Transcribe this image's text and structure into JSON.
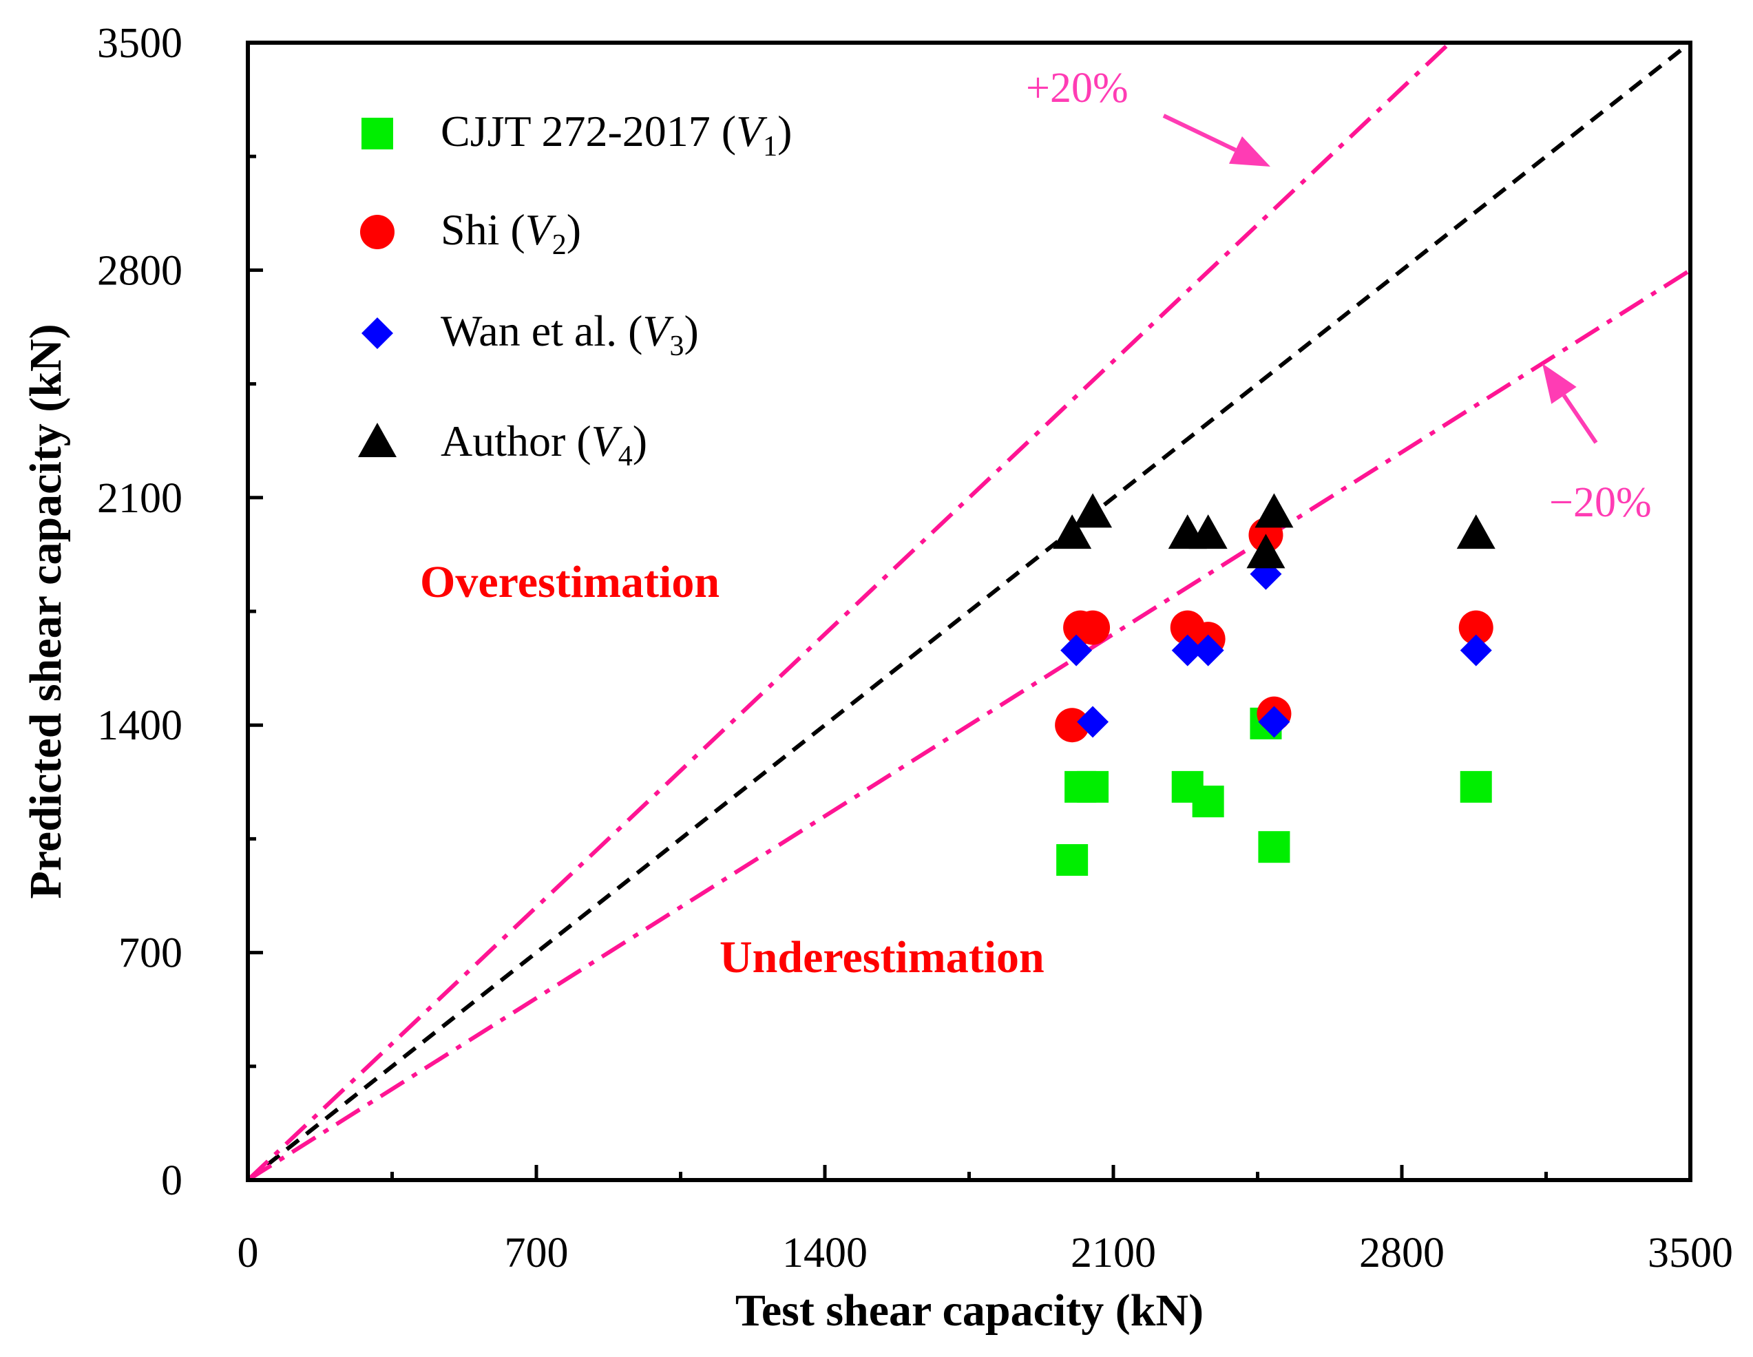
{
  "chart_data": {
    "type": "scatter",
    "xlabel": "Test shear capacity (kN)",
    "ylabel": "Predicted shear capacity (kN)",
    "xlim": [
      0,
      3500
    ],
    "ylim": [
      0,
      3500
    ],
    "x_ticks": [
      "0",
      "700",
      "1400",
      "2100",
      "2800",
      "3500"
    ],
    "y_ticks": [
      "0",
      "700",
      "1400",
      "2100",
      "2800",
      "3500"
    ],
    "tick_values": [
      0,
      700,
      1400,
      2100,
      2800,
      3500
    ],
    "minor_tick_values": [
      350,
      1050,
      1750,
      2450,
      3150
    ],
    "legend_position": "top-left",
    "series": [
      {
        "name": "CJJT 272-2017 (V1)",
        "label_main": "CJJT 272-2017 (",
        "label_var": "V",
        "label_sub": "1",
        "label_end": ")",
        "marker": "square",
        "color": "#00ee00",
        "points": [
          [
            2000,
            985
          ],
          [
            2020,
            1210
          ],
          [
            2050,
            1210
          ],
          [
            2280,
            1210
          ],
          [
            2330,
            1165
          ],
          [
            2470,
            1405
          ],
          [
            2490,
            1025
          ],
          [
            2980,
            1210
          ]
        ]
      },
      {
        "name": "Shi (V2)",
        "label_main": "Shi (",
        "label_var": "V",
        "label_sub": "2",
        "label_end": ")",
        "marker": "circle",
        "color": "#ff0000",
        "points": [
          [
            2000,
            1400
          ],
          [
            2020,
            1700
          ],
          [
            2050,
            1700
          ],
          [
            2280,
            1700
          ],
          [
            2330,
            1665
          ],
          [
            2470,
            1985
          ],
          [
            2490,
            1435
          ],
          [
            2980,
            1700
          ]
        ]
      },
      {
        "name": "Wan et al. (V3)",
        "label_main": "Wan et al. (",
        "label_var": "V",
        "label_sub": "3",
        "label_end": ")",
        "marker": "diamond",
        "color": "#0000ff",
        "points": [
          [
            2010,
            1630
          ],
          [
            2050,
            1410
          ],
          [
            2280,
            1630
          ],
          [
            2330,
            1630
          ],
          [
            2470,
            1865
          ],
          [
            2490,
            1410
          ],
          [
            2980,
            1630
          ]
        ]
      },
      {
        "name": "Author (V4)",
        "label_main": "Author (",
        "label_var": "V",
        "label_sub": "4",
        "label_end": ")",
        "marker": "triangle",
        "color": "#000000",
        "points": [
          [
            2000,
            1985
          ],
          [
            2050,
            2050
          ],
          [
            2280,
            1985
          ],
          [
            2330,
            1985
          ],
          [
            2470,
            1925
          ],
          [
            2490,
            2050
          ],
          [
            2980,
            1985
          ]
        ]
      }
    ],
    "reference_lines": [
      {
        "name": "equality",
        "slope": 1.0,
        "color": "#000000",
        "style": "dashed"
      },
      {
        "name": "+20%",
        "slope": 1.2,
        "color": "#ff1493",
        "style": "dash-dot"
      },
      {
        "name": "-20%",
        "slope": 0.8,
        "color": "#ff1493",
        "style": "dash-dot"
      }
    ],
    "annotations": {
      "plus20": "+20%",
      "minus20": "−20%",
      "over": "Overestimation",
      "under": "Underestimation",
      "band_color": "#ff3cb4",
      "region_color": "#ff0000"
    }
  }
}
